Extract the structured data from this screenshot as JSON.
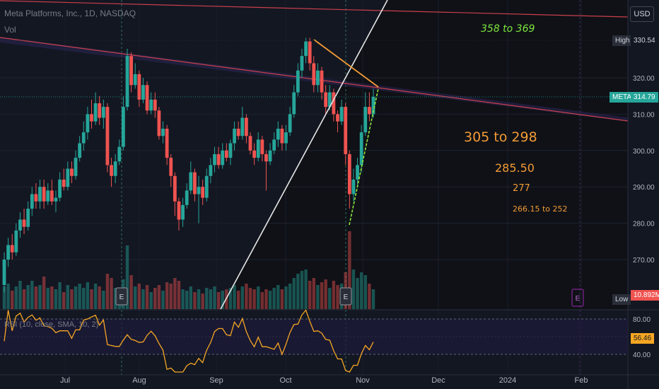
{
  "header": {
    "title": "Meta Platforms, Inc., 1D, NASDAQ",
    "volume_label": "Vol"
  },
  "currency_button": "USD",
  "markers": {
    "high_label": "High",
    "high_value": "330.54",
    "low_label": "Low",
    "low_value": "10.892M",
    "last_label": "META",
    "last_value": "314.79"
  },
  "earnings_marker": "E",
  "colors": {
    "background": "#131722",
    "shaded_region": "#0f1117",
    "up_candle": "#26a69a",
    "down_candle": "#ef5350",
    "trendline_red": "#e8505b",
    "trendline_white": "#e6e6e6",
    "trendline_orange": "#f39b35",
    "trendline_green": "#8ee53f",
    "rsi_line": "#f5a623",
    "annotation_orange": "#f39b35",
    "annotation_green": "#7ee83f"
  },
  "annotations": [
    {
      "text": "358 to 369",
      "color": "#7ee83f"
    },
    {
      "text": "305 to 298",
      "color": "#f39b35"
    },
    {
      "text": "285.50",
      "color": "#f39b35"
    },
    {
      "text": "277",
      "color": "#f39b35"
    },
    {
      "text": "266.15 to 252",
      "color": "#f39b35"
    }
  ],
  "rsi": {
    "label": "RSI (10, close, SMA, 10, 2)",
    "value": "56.46",
    "ticks": [
      "80.00",
      "40.00"
    ]
  },
  "chart_data": {
    "type": "candlestick",
    "title": "Meta Platforms, Inc., 1D, NASDAQ",
    "price_axis": {
      "ticks": [
        320,
        310,
        300,
        290,
        280,
        270
      ],
      "tick_labels": [
        "320.00",
        "310.00",
        "300.00",
        "290.00",
        "280.00",
        "270.00"
      ],
      "range": [
        260,
        340
      ]
    },
    "time_axis": {
      "labels": [
        "Jul",
        "Aug",
        "Sep",
        "Oct",
        "Nov",
        "Dec",
        "2024",
        "Feb"
      ]
    },
    "last_price": 314.79,
    "high": 330.54,
    "candles": [
      {
        "month": "Jun",
        "o": 263,
        "c": 270,
        "h": 272,
        "l": 261,
        "v": 16
      },
      {
        "month": "Jun",
        "o": 270,
        "c": 274,
        "h": 276,
        "l": 268,
        "v": 18
      },
      {
        "month": "Jun",
        "o": 274,
        "c": 272,
        "h": 277,
        "l": 270,
        "v": 13
      },
      {
        "month": "Jun",
        "o": 272,
        "c": 278,
        "h": 280,
        "l": 271,
        "v": 16
      },
      {
        "month": "Jun",
        "o": 278,
        "c": 281,
        "h": 283,
        "l": 276,
        "v": 20
      },
      {
        "month": "Jun",
        "o": 281,
        "c": 279,
        "h": 284,
        "l": 277,
        "v": 14
      },
      {
        "month": "Jun",
        "o": 279,
        "c": 284,
        "h": 286,
        "l": 278,
        "v": 17
      },
      {
        "month": "Jun",
        "o": 284,
        "c": 288,
        "h": 290,
        "l": 282,
        "v": 20
      },
      {
        "month": "Jun",
        "o": 288,
        "c": 286,
        "h": 291,
        "l": 284,
        "v": 16
      },
      {
        "month": "Jun",
        "o": 286,
        "c": 290,
        "h": 292,
        "l": 284,
        "v": 17
      },
      {
        "month": "Jun",
        "o": 290,
        "c": 286,
        "h": 292,
        "l": 284,
        "v": 23
      },
      {
        "month": "Jun",
        "o": 286,
        "c": 289,
        "h": 291,
        "l": 285,
        "v": 15
      },
      {
        "month": "Jun",
        "o": 289,
        "c": 286,
        "h": 292,
        "l": 285,
        "v": 16
      },
      {
        "month": "Jun",
        "o": 286,
        "c": 287,
        "h": 289,
        "l": 283,
        "v": 14
      },
      {
        "month": "Jun",
        "o": 287,
        "c": 292,
        "h": 294,
        "l": 286,
        "v": 19
      },
      {
        "month": "Jun",
        "o": 292,
        "c": 290,
        "h": 295,
        "l": 289,
        "v": 12
      },
      {
        "month": "Jun",
        "o": 290,
        "c": 295,
        "h": 297,
        "l": 289,
        "v": 17
      },
      {
        "month": "Jul",
        "o": 295,
        "c": 293,
        "h": 297,
        "l": 291,
        "v": 14
      },
      {
        "month": "Jul",
        "o": 293,
        "c": 298,
        "h": 300,
        "l": 292,
        "v": 16
      },
      {
        "month": "Jul",
        "o": 298,
        "c": 302,
        "h": 304,
        "l": 297,
        "v": 18
      },
      {
        "month": "Jul",
        "o": 302,
        "c": 305,
        "h": 308,
        "l": 300,
        "v": 15
      },
      {
        "month": "Jul",
        "o": 305,
        "c": 310,
        "h": 312,
        "l": 303,
        "v": 19
      },
      {
        "month": "Jul",
        "o": 310,
        "c": 308,
        "h": 314,
        "l": 306,
        "v": 14
      },
      {
        "month": "Jul",
        "o": 308,
        "c": 313,
        "h": 316,
        "l": 307,
        "v": 18
      },
      {
        "month": "Jul",
        "o": 313,
        "c": 309,
        "h": 315,
        "l": 307,
        "v": 16
      },
      {
        "month": "Jul",
        "o": 309,
        "c": 312,
        "h": 314,
        "l": 306,
        "v": 13
      },
      {
        "month": "Jul",
        "o": 312,
        "c": 296,
        "h": 313,
        "l": 294,
        "v": 25
      },
      {
        "month": "Jul",
        "o": 296,
        "c": 293,
        "h": 298,
        "l": 290,
        "v": 22
      },
      {
        "month": "Jul",
        "o": 293,
        "c": 297,
        "h": 299,
        "l": 291,
        "v": 15
      },
      {
        "month": "Jul",
        "o": 297,
        "c": 301,
        "h": 303,
        "l": 296,
        "v": 14
      },
      {
        "month": "Jul",
        "o": 301,
        "c": 312,
        "h": 315,
        "l": 300,
        "v": 21
      },
      {
        "month": "Jul",
        "o": 312,
        "c": 326,
        "h": 328,
        "l": 311,
        "v": 45
      },
      {
        "month": "Aug",
        "o": 326,
        "c": 318,
        "h": 327,
        "l": 316,
        "v": 24
      },
      {
        "month": "Aug",
        "o": 318,
        "c": 321,
        "h": 324,
        "l": 317,
        "v": 16
      },
      {
        "month": "Aug",
        "o": 321,
        "c": 314,
        "h": 322,
        "l": 312,
        "v": 18
      },
      {
        "month": "Aug",
        "o": 314,
        "c": 318,
        "h": 320,
        "l": 313,
        "v": 14
      },
      {
        "month": "Aug",
        "o": 318,
        "c": 311,
        "h": 319,
        "l": 310,
        "v": 17
      },
      {
        "month": "Aug",
        "o": 311,
        "c": 314,
        "h": 316,
        "l": 310,
        "v": 12
      },
      {
        "month": "Aug",
        "o": 314,
        "c": 311,
        "h": 316,
        "l": 309,
        "v": 15
      },
      {
        "month": "Aug",
        "o": 311,
        "c": 304,
        "h": 312,
        "l": 303,
        "v": 17
      },
      {
        "month": "Aug",
        "o": 304,
        "c": 306,
        "h": 308,
        "l": 302,
        "v": 13
      },
      {
        "month": "Aug",
        "o": 306,
        "c": 298,
        "h": 307,
        "l": 296,
        "v": 19
      },
      {
        "month": "Aug",
        "o": 298,
        "c": 293,
        "h": 299,
        "l": 290,
        "v": 18
      },
      {
        "month": "Aug",
        "o": 293,
        "c": 286,
        "h": 294,
        "l": 282,
        "v": 22
      },
      {
        "month": "Aug",
        "o": 286,
        "c": 281,
        "h": 287,
        "l": 278,
        "v": 20
      },
      {
        "month": "Aug",
        "o": 281,
        "c": 285,
        "h": 287,
        "l": 279,
        "v": 14
      },
      {
        "month": "Aug",
        "o": 285,
        "c": 289,
        "h": 291,
        "l": 284,
        "v": 13
      },
      {
        "month": "Aug",
        "o": 289,
        "c": 294,
        "h": 297,
        "l": 288,
        "v": 16
      },
      {
        "month": "Aug",
        "o": 294,
        "c": 288,
        "h": 295,
        "l": 286,
        "v": 12
      },
      {
        "month": "Aug",
        "o": 288,
        "c": 290,
        "h": 293,
        "l": 280,
        "v": 14
      },
      {
        "month": "Aug",
        "o": 290,
        "c": 287,
        "h": 292,
        "l": 285,
        "v": 11
      },
      {
        "month": "Aug",
        "o": 287,
        "c": 293,
        "h": 295,
        "l": 286,
        "v": 15
      },
      {
        "month": "Sep",
        "o": 293,
        "c": 296,
        "h": 298,
        "l": 291,
        "v": 14
      },
      {
        "month": "Sep",
        "o": 296,
        "c": 299,
        "h": 301,
        "l": 294,
        "v": 16
      },
      {
        "month": "Sep",
        "o": 299,
        "c": 296,
        "h": 301,
        "l": 295,
        "v": 12
      },
      {
        "month": "Sep",
        "o": 296,
        "c": 300,
        "h": 302,
        "l": 295,
        "v": 13
      },
      {
        "month": "Sep",
        "o": 300,
        "c": 298,
        "h": 302,
        "l": 297,
        "v": 14
      },
      {
        "month": "Sep",
        "o": 298,
        "c": 302,
        "h": 303,
        "l": 296,
        "v": 15
      },
      {
        "month": "Sep",
        "o": 302,
        "c": 306,
        "h": 308,
        "l": 300,
        "v": 17
      },
      {
        "month": "Sep",
        "o": 306,
        "c": 304,
        "h": 308,
        "l": 303,
        "v": 13
      },
      {
        "month": "Sep",
        "o": 304,
        "c": 309,
        "h": 312,
        "l": 303,
        "v": 16
      },
      {
        "month": "Sep",
        "o": 309,
        "c": 304,
        "h": 310,
        "l": 302,
        "v": 18
      },
      {
        "month": "Sep",
        "o": 304,
        "c": 300,
        "h": 305,
        "l": 299,
        "v": 15
      },
      {
        "month": "Sep",
        "o": 300,
        "c": 298,
        "h": 302,
        "l": 296,
        "v": 14
      },
      {
        "month": "Sep",
        "o": 298,
        "c": 303,
        "h": 305,
        "l": 297,
        "v": 16
      },
      {
        "month": "Sep",
        "o": 303,
        "c": 299,
        "h": 304,
        "l": 297,
        "v": 12
      },
      {
        "month": "Sep",
        "o": 299,
        "c": 297,
        "h": 300,
        "l": 289,
        "v": 14
      },
      {
        "month": "Sep",
        "o": 297,
        "c": 300,
        "h": 302,
        "l": 296,
        "v": 13
      },
      {
        "month": "Sep",
        "o": 300,
        "c": 303,
        "h": 305,
        "l": 299,
        "v": 15
      },
      {
        "month": "Sep",
        "o": 303,
        "c": 306,
        "h": 308,
        "l": 301,
        "v": 17
      },
      {
        "month": "Sep",
        "o": 306,
        "c": 302,
        "h": 307,
        "l": 300,
        "v": 14
      },
      {
        "month": "Sep",
        "o": 302,
        "c": 305,
        "h": 307,
        "l": 300,
        "v": 16
      },
      {
        "month": "Oct",
        "o": 305,
        "c": 310,
        "h": 312,
        "l": 304,
        "v": 18
      },
      {
        "month": "Oct",
        "o": 310,
        "c": 316,
        "h": 318,
        "l": 309,
        "v": 22
      },
      {
        "month": "Oct",
        "o": 316,
        "c": 322,
        "h": 324,
        "l": 315,
        "v": 25
      },
      {
        "month": "Oct",
        "o": 322,
        "c": 326,
        "h": 328,
        "l": 320,
        "v": 27
      },
      {
        "month": "Oct",
        "o": 326,
        "c": 330,
        "h": 331,
        "l": 324,
        "v": 28
      },
      {
        "month": "Oct",
        "o": 330,
        "c": 324,
        "h": 331,
        "l": 322,
        "v": 20
      },
      {
        "month": "Oct",
        "o": 324,
        "c": 318,
        "h": 326,
        "l": 316,
        "v": 22
      },
      {
        "month": "Oct",
        "o": 318,
        "c": 322,
        "h": 324,
        "l": 316,
        "v": 17
      },
      {
        "month": "Oct",
        "o": 322,
        "c": 316,
        "h": 323,
        "l": 314,
        "v": 19
      },
      {
        "month": "Oct",
        "o": 316,
        "c": 312,
        "h": 318,
        "l": 310,
        "v": 21
      },
      {
        "month": "Oct",
        "o": 312,
        "c": 316,
        "h": 318,
        "l": 311,
        "v": 15
      },
      {
        "month": "Oct",
        "o": 316,
        "c": 310,
        "h": 317,
        "l": 308,
        "v": 20
      },
      {
        "month": "Oct",
        "o": 310,
        "c": 308,
        "h": 311,
        "l": 305,
        "v": 17
      },
      {
        "month": "Oct",
        "o": 308,
        "c": 312,
        "h": 314,
        "l": 307,
        "v": 18
      },
      {
        "month": "Oct",
        "o": 312,
        "c": 299,
        "h": 313,
        "l": 296,
        "v": 26
      },
      {
        "month": "Oct",
        "o": 299,
        "c": 288,
        "h": 300,
        "l": 284,
        "v": 55
      },
      {
        "month": "Oct",
        "o": 288,
        "c": 292,
        "h": 295,
        "l": 286,
        "v": 28
      },
      {
        "month": "Oct",
        "o": 292,
        "c": 296,
        "h": 298,
        "l": 290,
        "v": 22
      },
      {
        "month": "Nov",
        "o": 296,
        "c": 305,
        "h": 307,
        "l": 294,
        "v": 26
      },
      {
        "month": "Nov",
        "o": 305,
        "c": 312,
        "h": 316,
        "l": 304,
        "v": 24
      },
      {
        "month": "Nov",
        "o": 312,
        "c": 310,
        "h": 316,
        "l": 308,
        "v": 18
      },
      {
        "month": "Nov",
        "o": 310,
        "c": 314.79,
        "h": 317,
        "l": 309,
        "v": 14
      }
    ]
  }
}
